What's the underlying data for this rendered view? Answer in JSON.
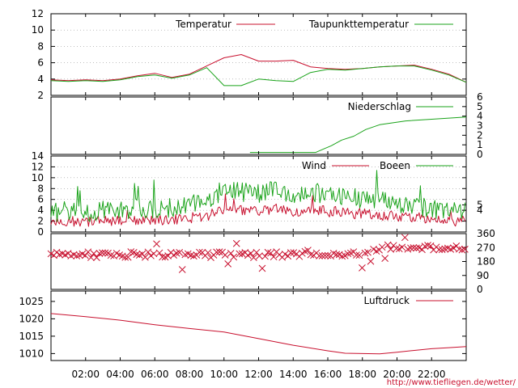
{
  "credit": "http://www.tiefliegen.de/wetter/",
  "colors": {
    "red": "#c8102e",
    "green": "#1aa31a"
  },
  "x_axis": {
    "range_hours": [
      0,
      24
    ],
    "ticks": [
      "02:00",
      "04:00",
      "06:00",
      "08:00",
      "10:00",
      "12:00",
      "14:00",
      "16:00",
      "18:00",
      "20:00",
      "22:00"
    ]
  },
  "chart_data": [
    {
      "type": "line",
      "ylim": [
        2,
        12
      ],
      "yticks_left": [
        "2",
        "4",
        "6",
        "8",
        "10",
        "12"
      ],
      "grid": true,
      "series": [
        {
          "name": "Temperatur",
          "color": "red",
          "points": [
            [
              0,
              3.9
            ],
            [
              1,
              3.8
            ],
            [
              2,
              3.9
            ],
            [
              3,
              3.8
            ],
            [
              4,
              4.0
            ],
            [
              5,
              4.4
            ],
            [
              6,
              4.7
            ],
            [
              7,
              4.2
            ],
            [
              8,
              4.6
            ],
            [
              9,
              5.6
            ],
            [
              10,
              6.6
            ],
            [
              11,
              7.0
            ],
            [
              12,
              6.2
            ],
            [
              13,
              6.2
            ],
            [
              14,
              6.3
            ],
            [
              15,
              5.5
            ],
            [
              16,
              5.3
            ],
            [
              17,
              5.2
            ],
            [
              18,
              5.3
            ],
            [
              19,
              5.5
            ],
            [
              20,
              5.6
            ],
            [
              21,
              5.7
            ],
            [
              22,
              5.2
            ],
            [
              23,
              4.6
            ],
            [
              24,
              3.6
            ]
          ]
        },
        {
          "name": "Taupunkttemperatur",
          "color": "green",
          "points": [
            [
              0,
              3.8
            ],
            [
              1,
              3.7
            ],
            [
              2,
              3.8
            ],
            [
              3,
              3.7
            ],
            [
              4,
              3.9
            ],
            [
              5,
              4.3
            ],
            [
              6,
              4.5
            ],
            [
              7,
              4.1
            ],
            [
              8,
              4.5
            ],
            [
              9,
              5.4
            ],
            [
              10,
              3.2
            ],
            [
              11,
              3.2
            ],
            [
              12,
              4.0
            ],
            [
              13,
              3.8
            ],
            [
              14,
              3.7
            ],
            [
              15,
              4.8
            ],
            [
              16,
              5.2
            ],
            [
              17,
              5.1
            ],
            [
              18,
              5.3
            ],
            [
              19,
              5.5
            ],
            [
              20,
              5.6
            ],
            [
              21,
              5.6
            ],
            [
              22,
              5.1
            ],
            [
              23,
              4.5
            ],
            [
              24,
              3.6
            ]
          ]
        }
      ]
    },
    {
      "type": "line",
      "ylim": [
        0,
        6
      ],
      "yticks_right": [
        "0",
        "1",
        "2",
        "3",
        "4",
        "5",
        "6"
      ],
      "grid": false,
      "series": [
        {
          "name": "Niederschlag",
          "color": "green",
          "points": [
            [
              11.5,
              0.2
            ],
            [
              15.3,
              0.2
            ],
            [
              15.8,
              0.6
            ],
            [
              16.2,
              0.9
            ],
            [
              16.8,
              1.5
            ],
            [
              17.5,
              1.9
            ],
            [
              18.2,
              2.6
            ],
            [
              19,
              3.1
            ],
            [
              20.5,
              3.5
            ],
            [
              24,
              3.9
            ]
          ]
        }
      ]
    },
    {
      "type": "line",
      "ylim": [
        0,
        14
      ],
      "yticks_left": [
        "0",
        "2",
        "4",
        "6",
        "8",
        "10",
        "12",
        "14"
      ],
      "yticks_right": [
        "4",
        "5"
      ],
      "grid": true,
      "series": [
        {
          "name": "Wind",
          "color": "red",
          "points": [
            [
              0,
              1.8
            ],
            [
              1,
              2.0
            ],
            [
              2,
              1.8
            ],
            [
              3,
              2.1
            ],
            [
              4,
              2.0
            ],
            [
              5,
              2.3
            ],
            [
              6,
              2.1
            ],
            [
              7,
              2.3
            ],
            [
              8,
              2.6
            ],
            [
              9,
              3.0
            ],
            [
              10,
              4.2
            ],
            [
              11,
              4.0
            ],
            [
              12,
              3.8
            ],
            [
              13,
              4.2
            ],
            [
              14,
              3.6
            ],
            [
              15,
              4.0
            ],
            [
              16,
              3.8
            ],
            [
              17,
              3.6
            ],
            [
              18,
              3.3
            ],
            [
              19,
              3.1
            ],
            [
              20,
              2.9
            ],
            [
              21,
              2.7
            ],
            [
              22,
              2.4
            ],
            [
              23,
              2.1
            ],
            [
              24,
              2.0
            ]
          ]
        },
        {
          "name": "Boeen",
          "color": "green",
          "points": [
            [
              0,
              3.5
            ],
            [
              1,
              3.9
            ],
            [
              2,
              3.6
            ],
            [
              3,
              4.1
            ],
            [
              4,
              3.8
            ],
            [
              5,
              4.4
            ],
            [
              6,
              4.1
            ],
            [
              7,
              4.5
            ],
            [
              8,
              5.0
            ],
            [
              9,
              5.8
            ],
            [
              10,
              7.8
            ],
            [
              11,
              7.4
            ],
            [
              12,
              7.1
            ],
            [
              13,
              7.9
            ],
            [
              14,
              6.8
            ],
            [
              15,
              7.3
            ],
            [
              16,
              7.0
            ],
            [
              17,
              6.5
            ],
            [
              18,
              6.1
            ],
            [
              19,
              5.7
            ],
            [
              20,
              5.3
            ],
            [
              21,
              4.9
            ],
            [
              22,
              4.4
            ],
            [
              23,
              3.9
            ],
            [
              24,
              3.6
            ]
          ]
        }
      ]
    },
    {
      "type": "scatter",
      "ylim": [
        0,
        360
      ],
      "yticks_right": [
        "0",
        "90",
        "180",
        "270",
        "360"
      ],
      "grid": false,
      "series": [
        {
          "name": "",
          "color": "red",
          "marker": "x",
          "base_points": [
            [
              0,
              225
            ],
            [
              2,
              225
            ],
            [
              4,
              225
            ],
            [
              6,
              225
            ],
            [
              8,
              225
            ],
            [
              10,
              225
            ],
            [
              12,
              225
            ],
            [
              14,
              225
            ],
            [
              16,
              225
            ],
            [
              18,
              225
            ],
            [
              19.5,
              270
            ],
            [
              21,
              270
            ],
            [
              23,
              270
            ],
            [
              24,
              270
            ]
          ]
        }
      ]
    },
    {
      "type": "line",
      "ylim": [
        1008,
        1028
      ],
      "yticks_left": [
        "1010",
        "1015",
        "1020",
        "1025"
      ],
      "grid": false,
      "series": [
        {
          "name": "Luftdruck",
          "color": "red",
          "points": [
            [
              0,
              1021.5
            ],
            [
              2,
              1020.6
            ],
            [
              4,
              1019.6
            ],
            [
              6,
              1018.3
            ],
            [
              8,
              1017.2
            ],
            [
              10,
              1016.2
            ],
            [
              12,
              1014.3
            ],
            [
              14,
              1012.4
            ],
            [
              16,
              1010.8
            ],
            [
              17,
              1010.1
            ],
            [
              18,
              1010.0
            ],
            [
              19,
              1009.9
            ],
            [
              20,
              1010.4
            ],
            [
              21,
              1010.9
            ],
            [
              22,
              1011.4
            ],
            [
              23,
              1011.7
            ],
            [
              24,
              1012.0
            ]
          ]
        }
      ]
    }
  ]
}
